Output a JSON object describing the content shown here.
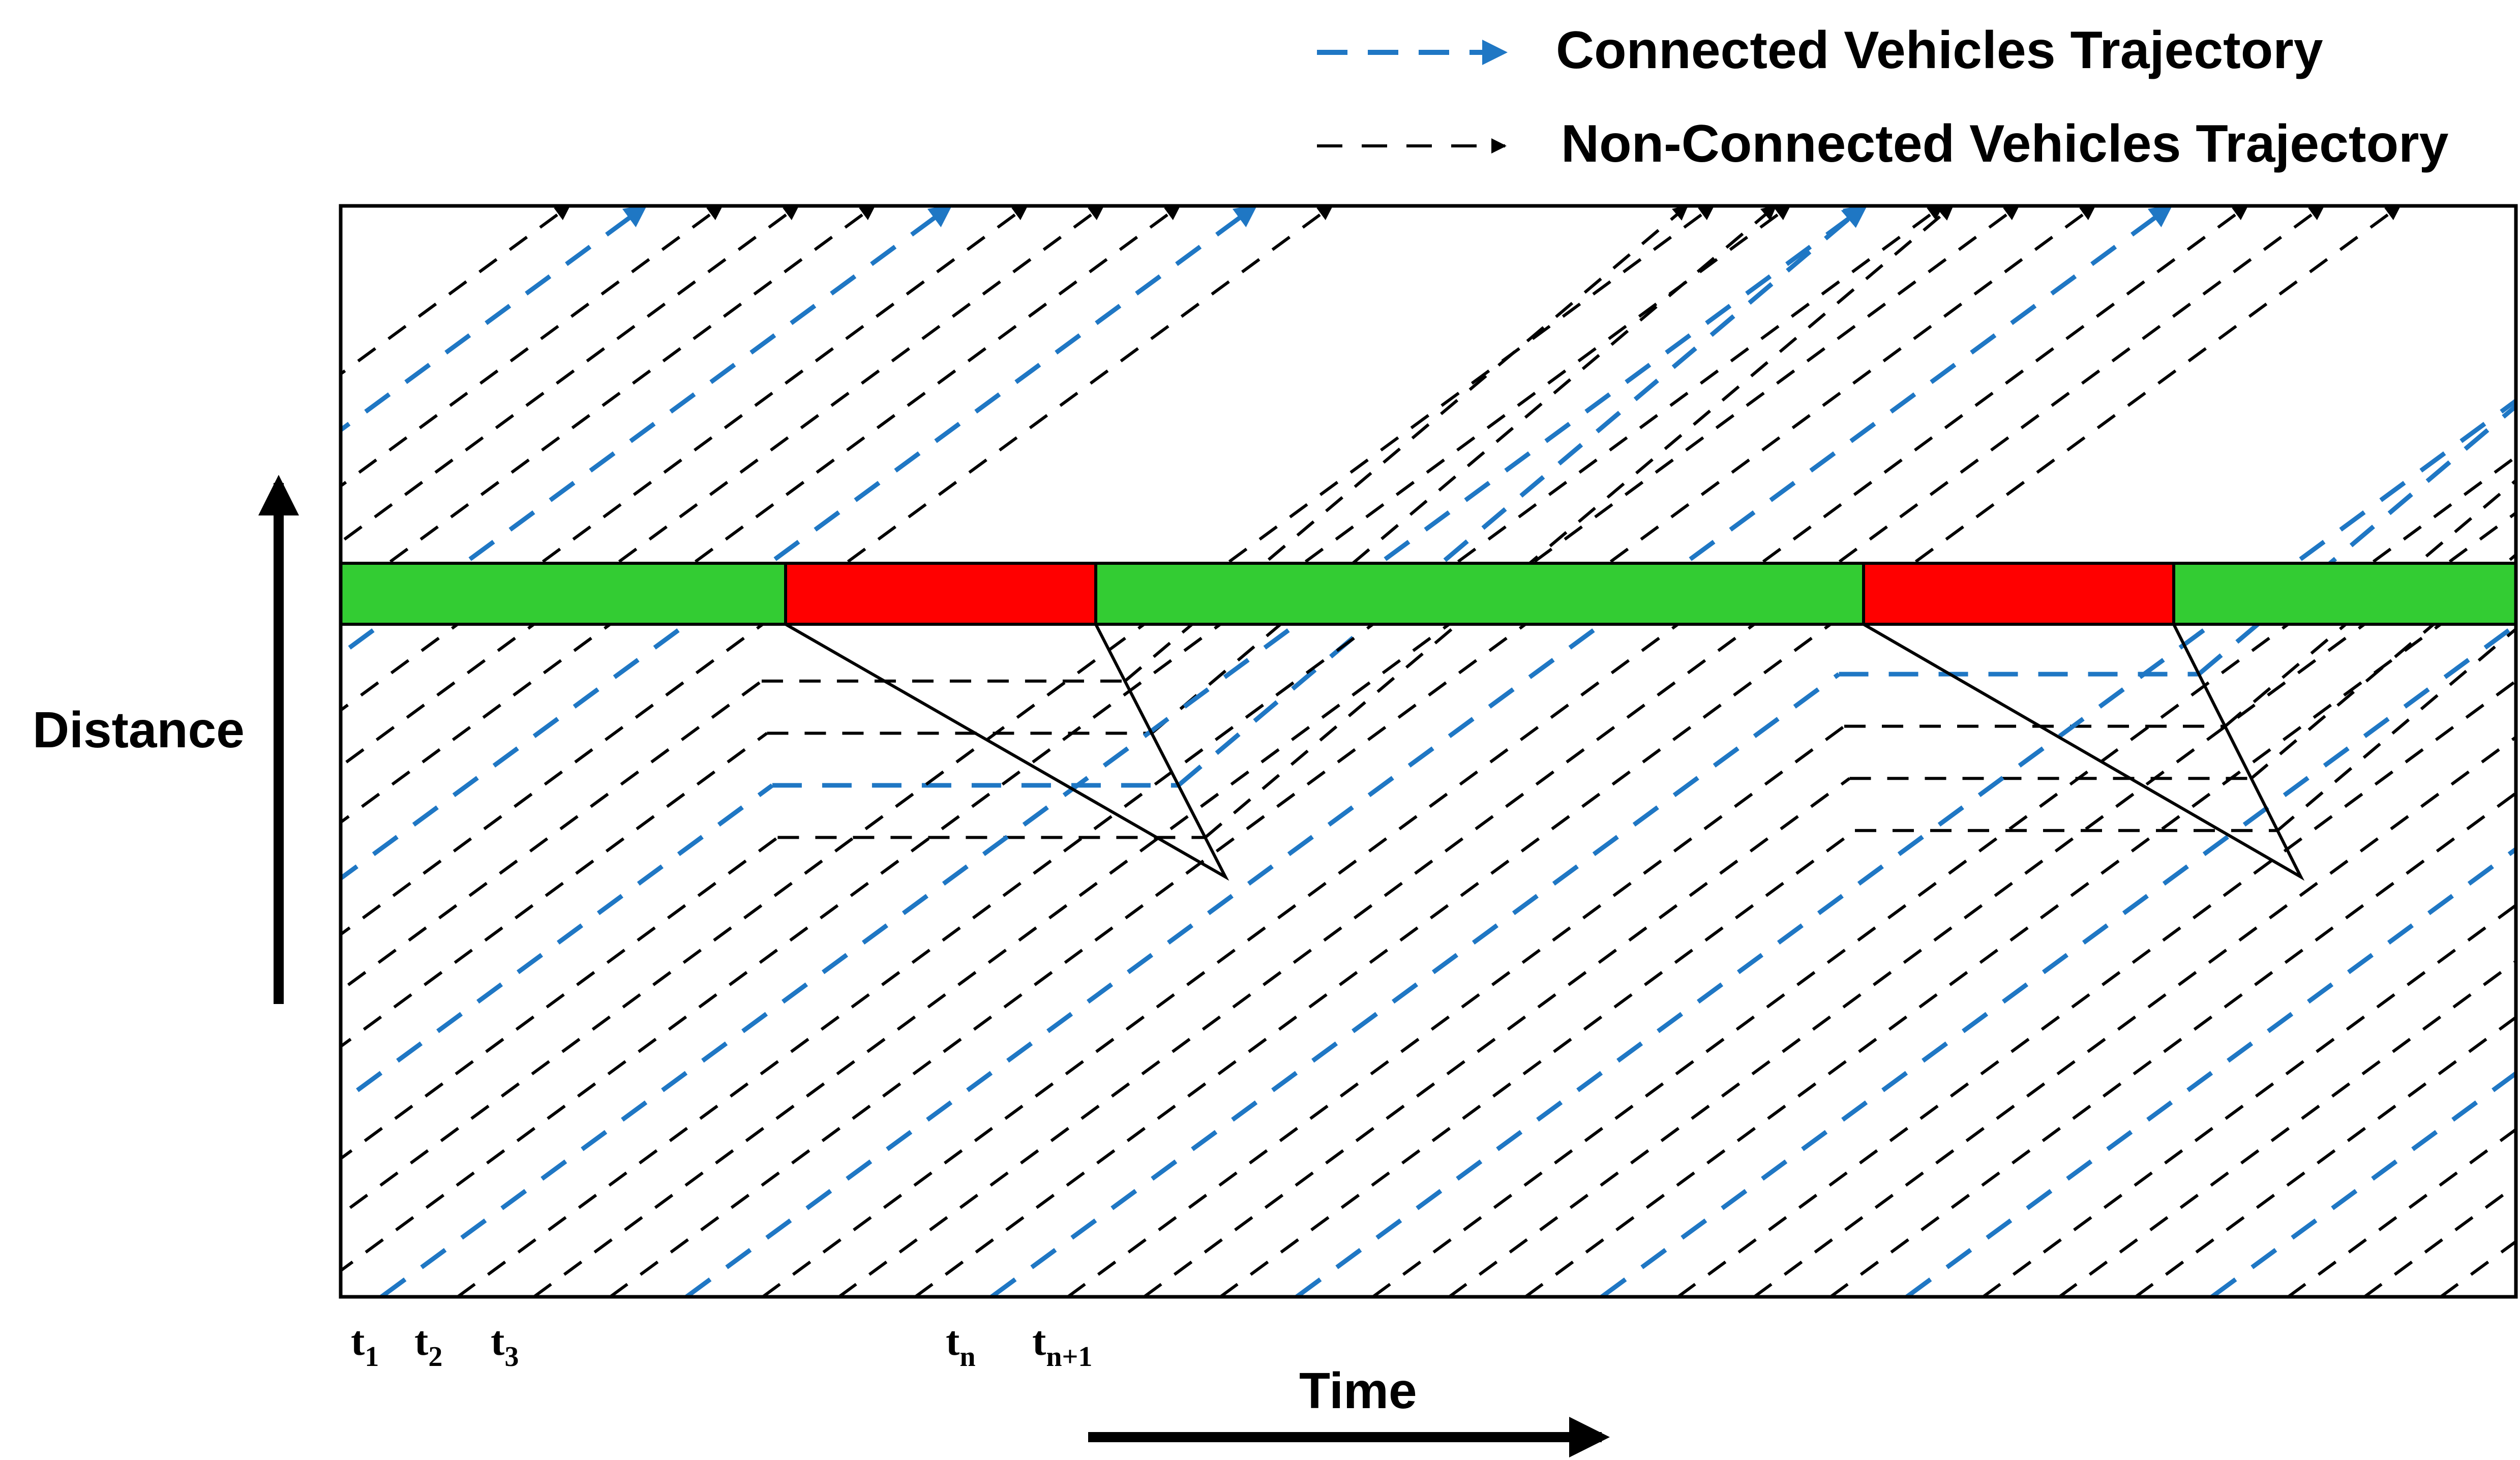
{
  "legend": {
    "connected_label": "Connected Vehicles Trajectory",
    "non_connected_label": "Non-Connected Vehicles Trajectory"
  },
  "axes": {
    "y_label": "Distance",
    "x_label": "Time"
  },
  "time_ticks": [
    {
      "base": "t",
      "sub": "1"
    },
    {
      "base": "t",
      "sub": "2"
    },
    {
      "base": "t",
      "sub": "3"
    },
    {
      "base": "t",
      "sub": "n"
    },
    {
      "base": "t",
      "sub": "n+1"
    }
  ],
  "signal_phases": [
    "green",
    "red",
    "green",
    "red",
    "green"
  ],
  "colors": {
    "connected": "#1f77c4",
    "non_connected": "#000000",
    "green_phase": "#33cc33",
    "red_phase": "#ff0000",
    "frame": "#000000"
  }
}
